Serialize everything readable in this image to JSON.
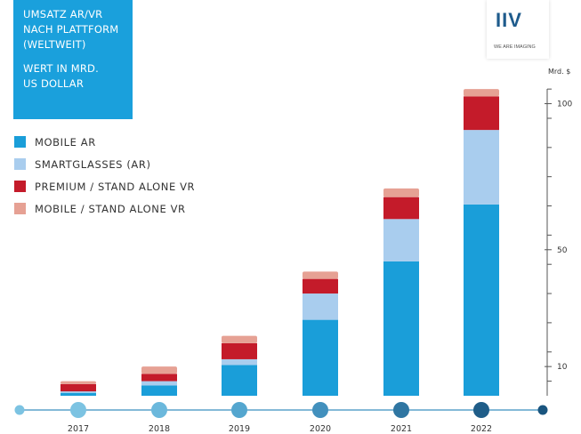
{
  "header": {
    "title": "UMSATZ AR/VR\nNACH PLATTFORM\n(WELTWEIT)",
    "subtitle": "WERT IN MRD.\nUS DOLLAR"
  },
  "logo": {
    "mark": "IIV",
    "tagline": "WE ARE IMAGING"
  },
  "chart_data": {
    "type": "bar",
    "stacked": true,
    "categories": [
      "2017",
      "2018",
      "2019",
      "2020",
      "2021",
      "2022"
    ],
    "series": [
      {
        "name": "MOBILE AR",
        "color": "#1a9ed9",
        "values": [
          1,
          3.5,
          10.5,
          26,
          46,
          65.5
        ]
      },
      {
        "name": "SMARTGLASSES (AR)",
        "color": "#a9cdee",
        "values": [
          0.5,
          1.5,
          2,
          9,
          14.5,
          25.5
        ]
      },
      {
        "name": "PREMIUM / STAND ALONE VR",
        "color": "#c41b2a",
        "values": [
          2.5,
          2.5,
          5.5,
          5,
          7.5,
          11.5
        ]
      },
      {
        "name": "MOBILE / STAND ALONE VR",
        "color": "#e6a194",
        "values": [
          1,
          2.5,
          2.5,
          2.5,
          3,
          2.5
        ]
      }
    ],
    "ylabel": "Mrd. $",
    "ylim": [
      0,
      105
    ],
    "yticks": [
      10,
      50,
      100
    ],
    "timeline_dot_colors": [
      "#7cc3e2",
      "#6bb8dc",
      "#54a6cf",
      "#4290bd",
      "#2f76a2",
      "#1f5d88",
      "#1a557f"
    ],
    "legend_position": "top-left"
  }
}
